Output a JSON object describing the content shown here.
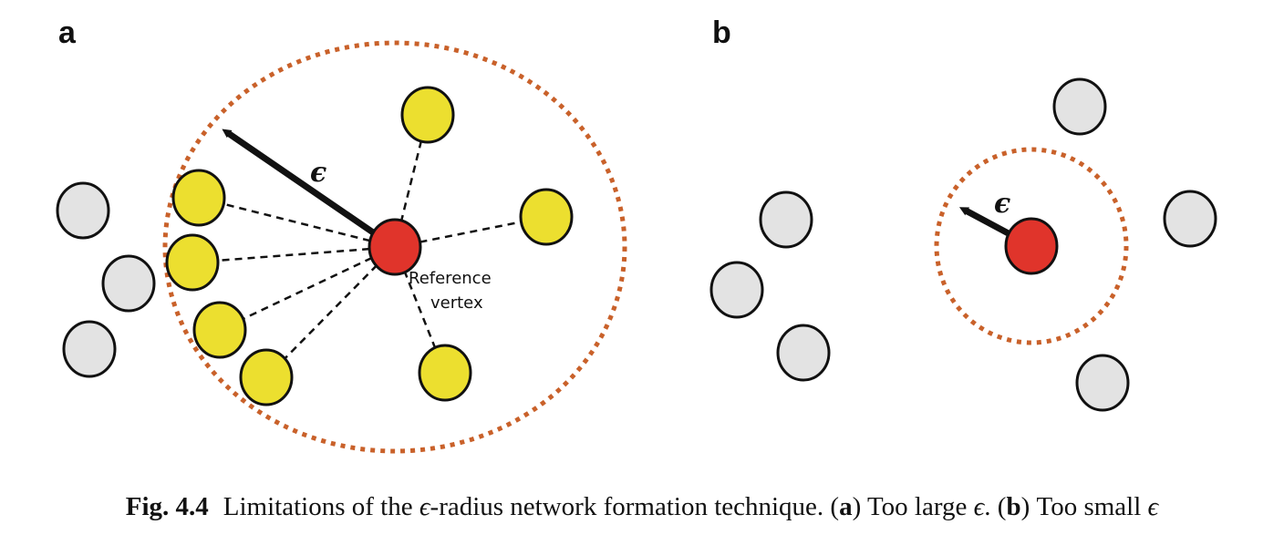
{
  "panels": {
    "a": {
      "label": "a",
      "epsilon_label": "ϵ",
      "reference_label_line1": "Reference",
      "reference_label_line2": "vertex"
    },
    "b": {
      "label": "b",
      "epsilon_label": "ϵ"
    }
  },
  "caption": {
    "figure_number": "Fig. 4.4",
    "text_1": "Limitations of the ",
    "eps_1": "ϵ",
    "text_2": "-radius network formation technique. (",
    "a_marker": "a",
    "text_3": ") Too large ",
    "eps_2": "ϵ",
    "text_4": ". (",
    "b_marker": "b",
    "text_5": ") Too small ",
    "eps_3": "ϵ"
  },
  "colors": {
    "neighbor_node": "#ecdf2f",
    "outside_node": "#e3e3e3",
    "reference_node": "#e0342b",
    "radius_circle": "#c9612a",
    "stroke": "#111111"
  }
}
